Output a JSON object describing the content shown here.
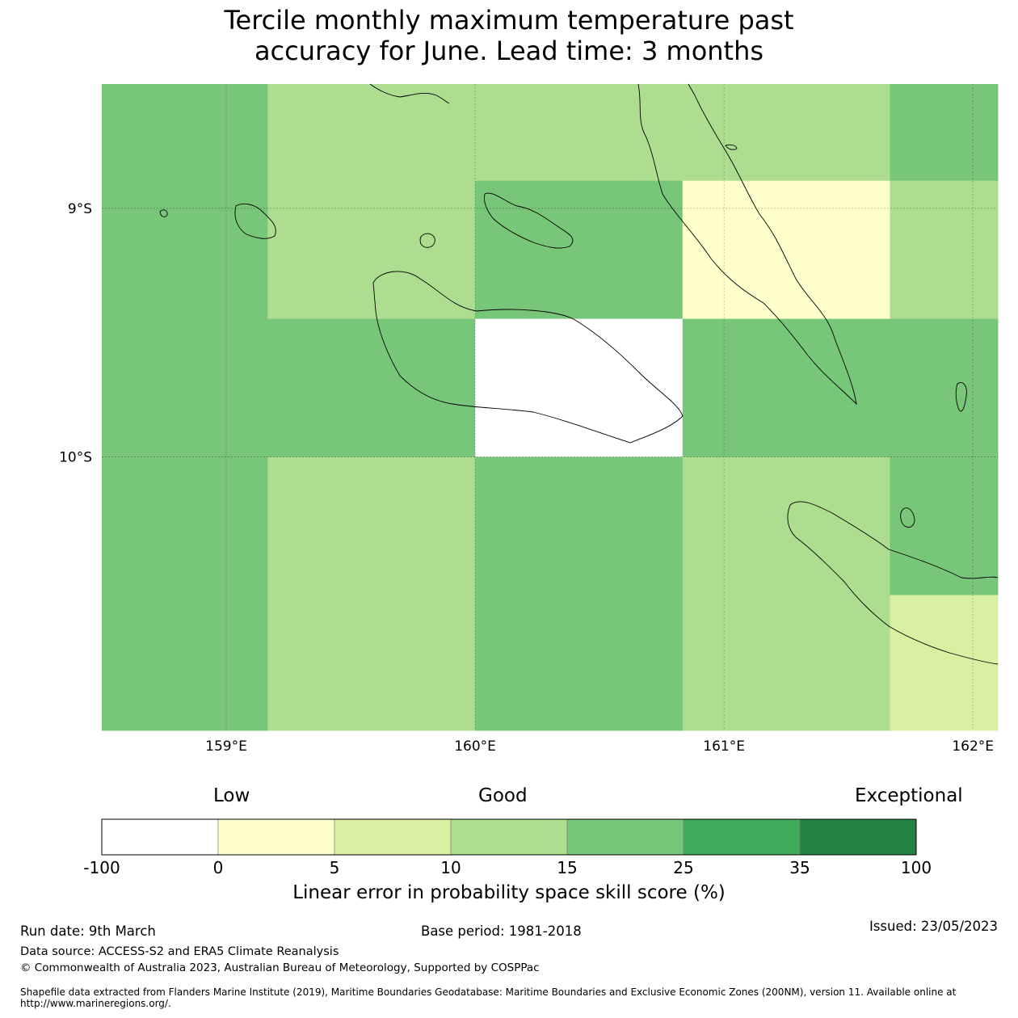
{
  "title_line1": "Tercile monthly maximum temperature past",
  "title_line2": "accuracy for June. Lead time: 3 months",
  "map": {
    "lon_range": [
      158.5,
      162.1
    ],
    "lat_range": [
      -8.5,
      -11.1
    ],
    "lon_ticks": [
      "159°E",
      "160°E",
      "161°E",
      "162°E"
    ],
    "lat_ticks": [
      "9°S",
      "10°S"
    ],
    "cell_categories": [
      [
        4,
        3,
        3,
        3,
        4
      ],
      [
        4,
        3,
        4,
        1,
        3
      ],
      [
        4,
        4,
        0,
        4,
        4
      ],
      [
        4,
        3,
        4,
        3,
        4
      ],
      [
        4,
        3,
        4,
        3,
        2
      ]
    ]
  },
  "colorbar": {
    "qualitative_labels": [
      "Low",
      "Good",
      "Exceptional"
    ],
    "tick_labels": [
      "-100",
      "0",
      "5",
      "10",
      "15",
      "25",
      "35",
      "100"
    ],
    "colors": [
      "#ffffff",
      "#ffffcc",
      "#d9f0a3",
      "#addd8e",
      "#78c679",
      "#41ab5d",
      "#238443"
    ],
    "title": "Linear error in probability space skill score (%)"
  },
  "footer": {
    "run_date": "Run date: 9th March",
    "base_period": "Base period: 1981-2018",
    "issued": "Issued: 23/05/2023",
    "data_source": "Data source: ACCESS-S2 and ERA5 Climate Reanalysis",
    "copyright": "© Commonwealth of Australia 2023, Australian Bureau of Meteorology, Supported by COSPPac",
    "shapefile": "Shapefile data extracted from Flanders Marine Institute (2019), Maritime Boundaries Geodatabase: Maritime Boundaries and Exclusive Economic Zones (200NM), version 11. Available online at http://www.marineregions.org/."
  }
}
